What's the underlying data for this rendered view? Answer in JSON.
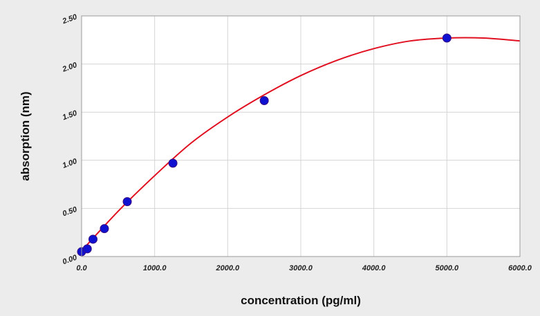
{
  "chart_data": {
    "type": "scatter",
    "title": "",
    "xlabel": "concentration (pg/ml)",
    "ylabel": "absorption (nm)",
    "xlim": [
      0,
      6000
    ],
    "ylim": [
      0,
      2.5
    ],
    "x_ticks": [
      "0.0",
      "1000.0",
      "2000.0",
      "3000.0",
      "4000.0",
      "5000.0",
      "6000.0"
    ],
    "y_ticks": [
      "0.00",
      "0.50",
      "1.00",
      "1.50",
      "2.00",
      "2.50"
    ],
    "grid": true,
    "series": [
      {
        "type": "scatter",
        "x": [
          0,
          78,
          156,
          312,
          625,
          1250,
          2500,
          5000
        ],
        "y": [
          0.05,
          0.08,
          0.18,
          0.29,
          0.57,
          0.97,
          1.62,
          2.27
        ]
      },
      {
        "type": "line",
        "x": [
          0,
          500,
          1000,
          1500,
          2000,
          2500,
          3000,
          3500,
          4000,
          4500,
          5000,
          5500,
          6000
        ],
        "y": [
          0.06,
          0.47,
          0.84,
          1.18,
          1.45,
          1.68,
          1.88,
          2.04,
          2.16,
          2.24,
          2.27,
          2.27,
          2.24
        ]
      }
    ],
    "colors": {
      "markers": "#1010d0",
      "curve": "#e01020",
      "grid": "#d4d4d4",
      "plot_bg": "#ffffff",
      "page_bg": "#ececec"
    }
  }
}
